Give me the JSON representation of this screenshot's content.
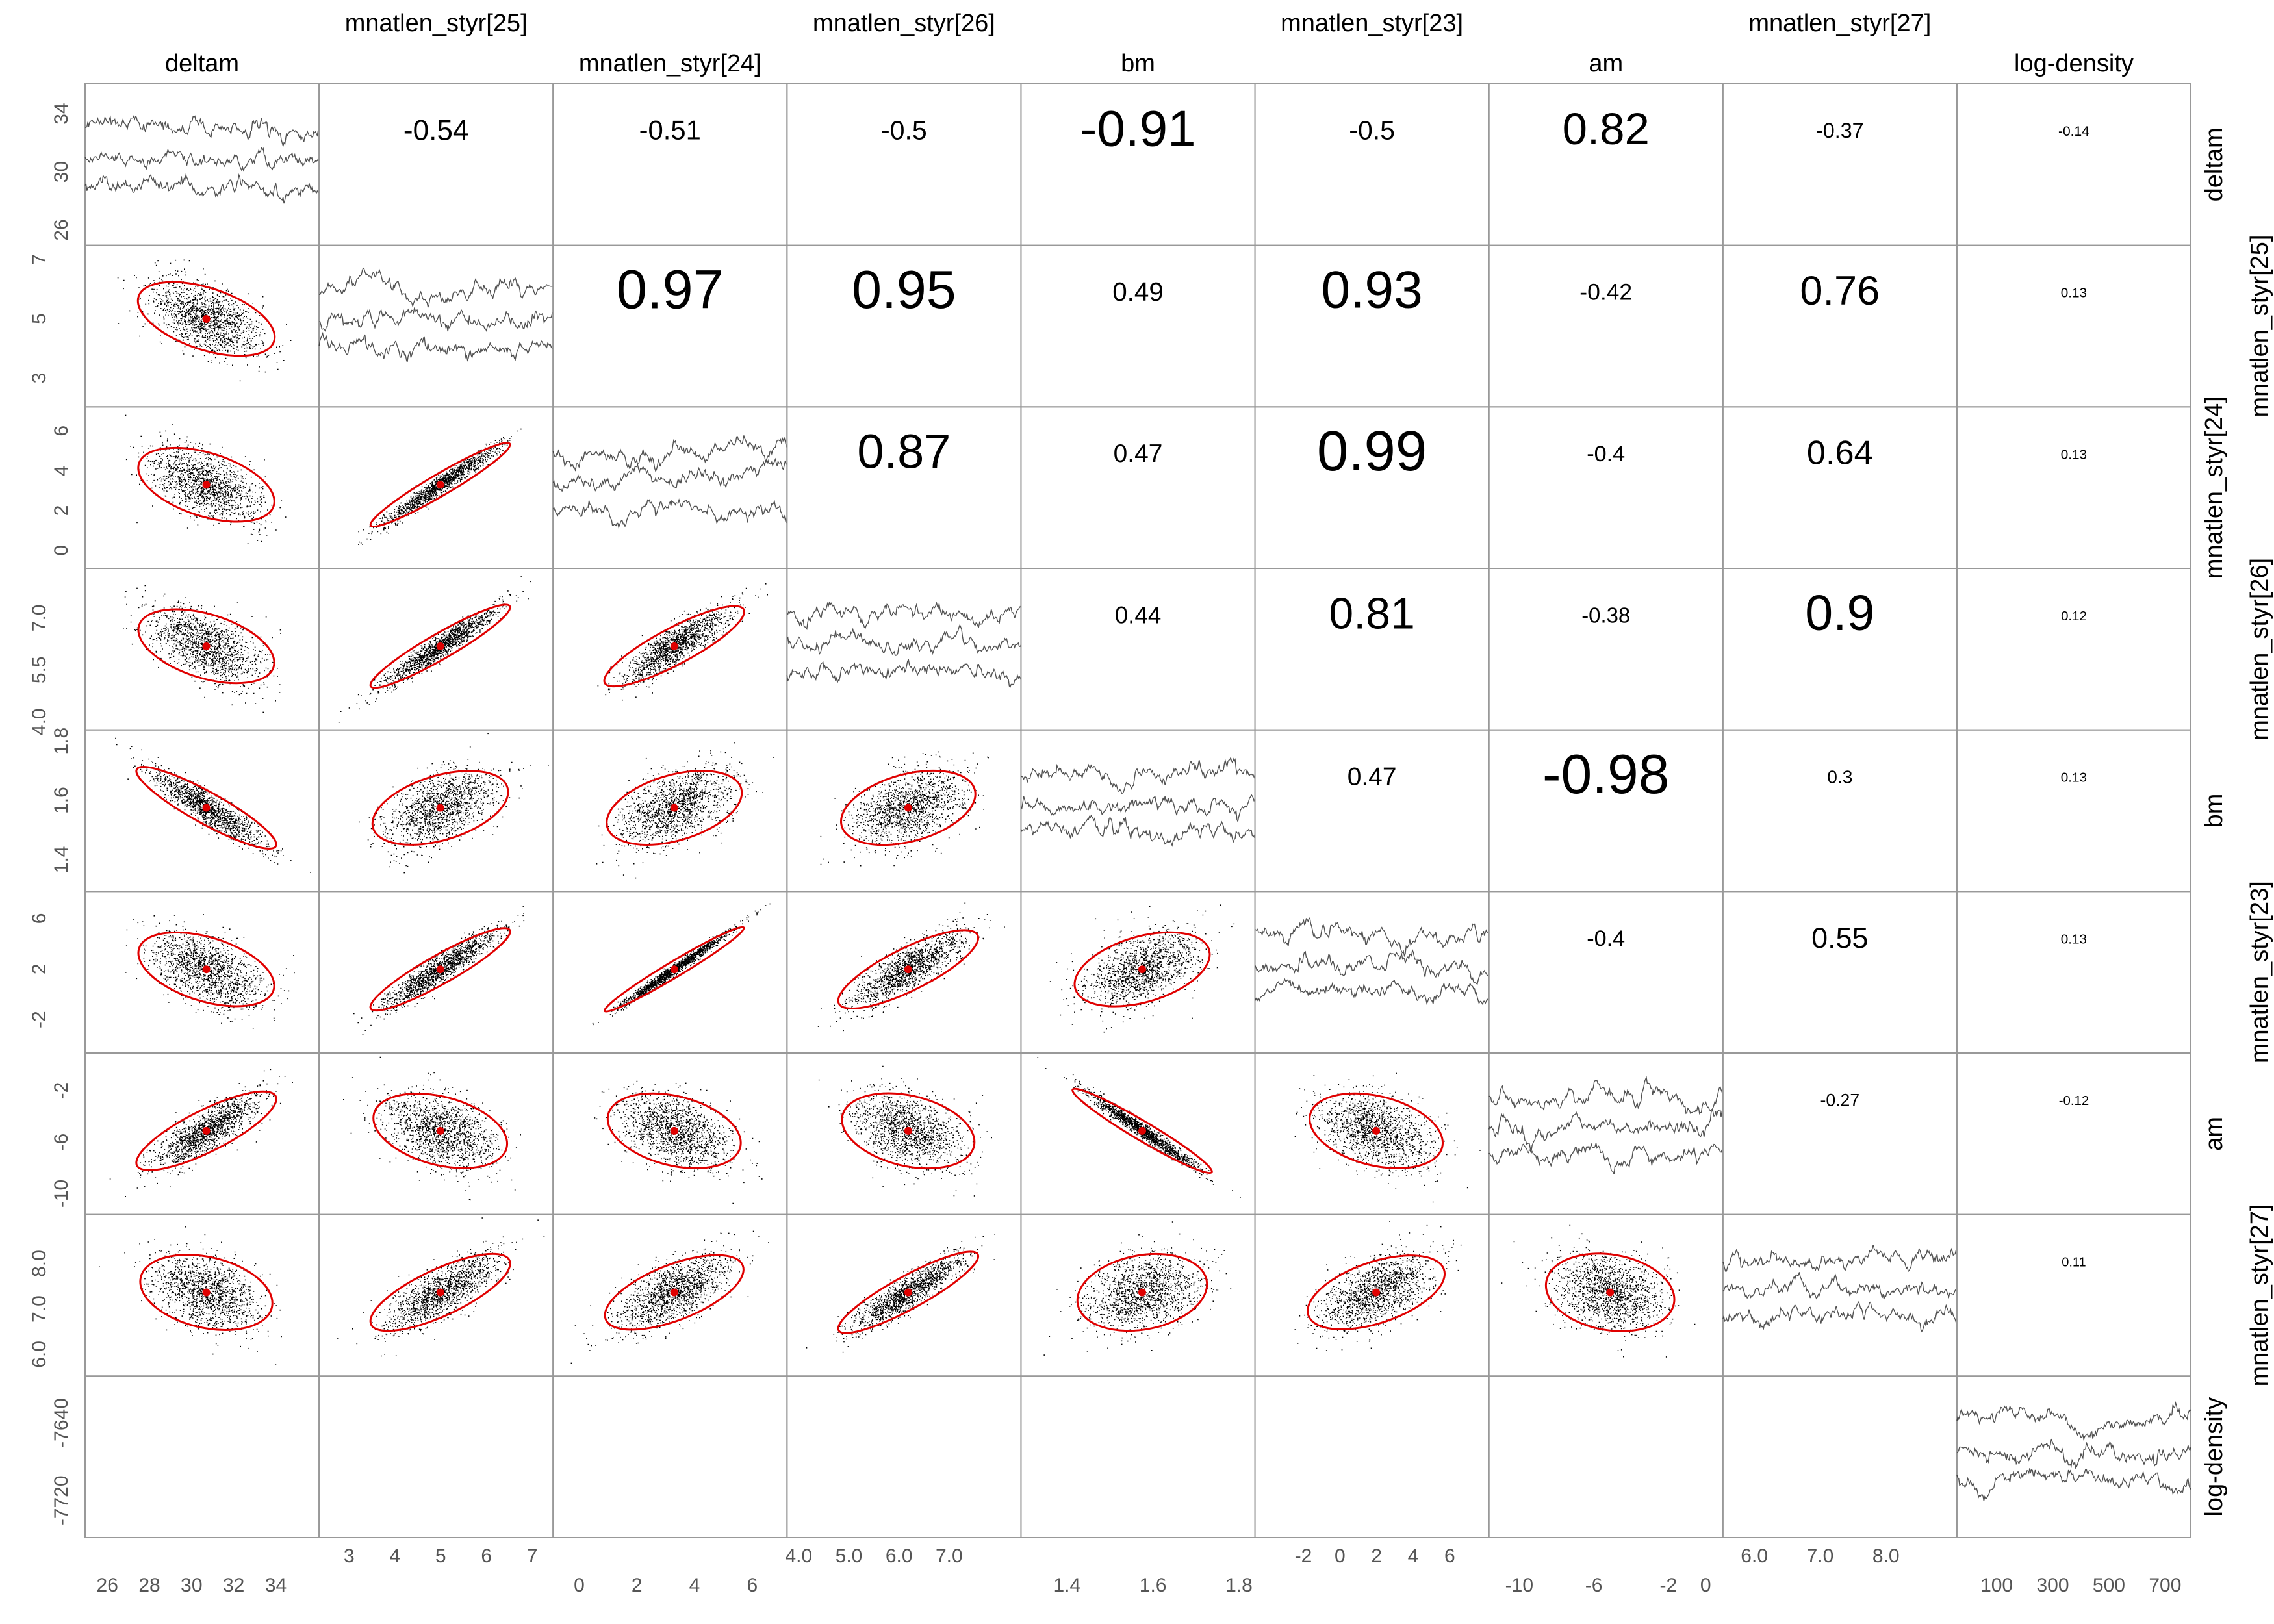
{
  "chart_data": {
    "type": "scatter",
    "layout": "pairs-matrix",
    "variables": [
      "deltam",
      "mnatlen_styr[25]",
      "mnatlen_styr[24]",
      "mnatlen_styr[26]",
      "bm",
      "mnatlen_styr[23]",
      "am",
      "mnatlen_styr[27]",
      "log-density"
    ],
    "axes": [
      {
        "ticks": [
          "26",
          "28",
          "30",
          "32",
          "34"
        ],
        "range": [
          25.5,
          35.5
        ]
      },
      {
        "ticks": [
          "3",
          "4",
          "5",
          "6",
          "7"
        ],
        "range": [
          2.6,
          7.2
        ]
      },
      {
        "ticks": [
          "0",
          "2",
          "4",
          "6"
        ],
        "range": [
          -0.5,
          6.8
        ]
      },
      {
        "ticks": [
          "4.0",
          "5.0",
          "6.0",
          "7.0"
        ],
        "range": [
          4.0,
          8.2
        ]
      },
      {
        "ticks": [
          "1.4",
          "1.6",
          "1.8"
        ],
        "range": [
          1.32,
          1.81
        ]
      },
      {
        "ticks": [
          "-2",
          "0",
          "2",
          "4",
          "6"
        ],
        "range": [
          -4.0,
          7.5
        ]
      },
      {
        "ticks": [
          "-10",
          "-6",
          "-2",
          "0"
        ],
        "range": [
          -11.0,
          0.3
        ]
      },
      {
        "ticks": [
          "6.0",
          "7.0",
          "8.0"
        ],
        "range": [
          5.7,
          8.9
        ]
      },
      {
        "ticks": [
          "100",
          "300",
          "500",
          "700"
        ],
        "range": [
          0,
          750
        ]
      }
    ],
    "left_axes": [
      {
        "ticks": [
          "26",
          "30",
          "34"
        ],
        "range": [
          25.5,
          35.5
        ]
      },
      {
        "ticks": [
          "3",
          "5",
          "7"
        ],
        "range": [
          2.3,
          7.2
        ]
      },
      {
        "ticks": [
          "0",
          "2",
          "4",
          "6"
        ],
        "range": [
          -0.5,
          6.8
        ]
      },
      {
        "ticks": [
          "4.0",
          "5.5",
          "7.0"
        ],
        "range": [
          4.0,
          8.2
        ]
      },
      {
        "ticks": [
          "1.4",
          "1.6",
          "1.8"
        ],
        "range": [
          1.32,
          1.81
        ]
      },
      {
        "ticks": [
          "-2",
          "2",
          "6"
        ],
        "range": [
          -4.0,
          7.5
        ]
      },
      {
        "ticks": [
          "-10",
          "-6",
          "-2"
        ],
        "range": [
          -11.0,
          0.3
        ]
      },
      {
        "ticks": [
          "6.0",
          "7.0",
          "8.0"
        ],
        "range": [
          5.7,
          8.9
        ]
      },
      {
        "ticks": [
          "-7720",
          "-7640"
        ],
        "range": [
          -7750,
          -7600
        ]
      }
    ],
    "correlations": [
      [
        null,
        "-0.54",
        "-0.51",
        "-0.5",
        "-0.91",
        "-0.5",
        "0.82",
        "-0.37",
        "-0.14"
      ],
      [
        null,
        null,
        "0.97",
        "0.95",
        "0.49",
        "0.93",
        "-0.42",
        "0.76",
        "0.13"
      ],
      [
        null,
        null,
        null,
        "0.87",
        "0.47",
        "0.99",
        "-0.4",
        "0.64",
        "0.13"
      ],
      [
        null,
        null,
        null,
        null,
        "0.44",
        "0.81",
        "-0.38",
        "0.9",
        "0.12"
      ],
      [
        null,
        null,
        null,
        null,
        null,
        "0.47",
        "-0.98",
        "0.3",
        "0.13"
      ],
      [
        null,
        null,
        null,
        null,
        null,
        null,
        "-0.4",
        "0.55",
        "0.13"
      ],
      [
        null,
        null,
        null,
        null,
        null,
        null,
        null,
        "-0.27",
        "-0.12"
      ],
      [
        null,
        null,
        null,
        null,
        null,
        null,
        null,
        null,
        "0.11"
      ]
    ],
    "colors": {
      "points": "#000000",
      "ellipse": "#e00000",
      "trace": "#333333",
      "frame": "#999999"
    }
  }
}
